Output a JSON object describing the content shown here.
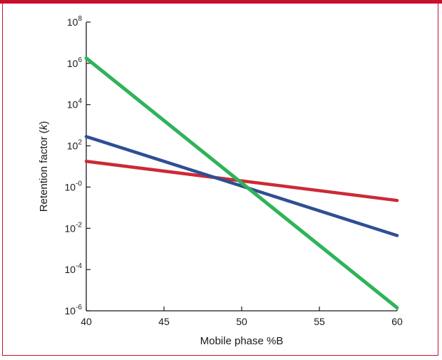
{
  "chart_data": {
    "type": "line",
    "title": "",
    "xlabel": "Mobile phase %B",
    "ylabel_prefix": "Retention factor (",
    "ylabel_italic": "k",
    "ylabel_suffix": ")",
    "xlim": [
      40,
      60
    ],
    "ylim": [
      -6,
      8
    ],
    "y_scale": "log10",
    "grid": false,
    "legend": "none",
    "x_ticks": [
      40,
      45,
      50,
      55,
      60
    ],
    "x_tick_labels": [
      "40",
      "45",
      "50",
      "55",
      "60"
    ],
    "y_ticks": [
      8,
      6,
      4,
      2,
      0,
      -2,
      -4,
      -6
    ],
    "y_tick_base": "10",
    "y_tick_exponents": [
      "8",
      "6",
      "4",
      "2",
      "-0",
      "-2",
      "-4",
      "-6"
    ],
    "series": [
      {
        "color": "#cc2a36",
        "x": [
          40,
          60
        ],
        "log10_y": [
          1.25,
          -0.65
        ]
      },
      {
        "color": "#2f4f93",
        "x": [
          40,
          60
        ],
        "log10_y": [
          2.45,
          -2.35
        ]
      },
      {
        "color": "#2fb35a",
        "x": [
          40,
          60
        ],
        "log10_y": [
          6.25,
          -5.85
        ]
      }
    ]
  }
}
